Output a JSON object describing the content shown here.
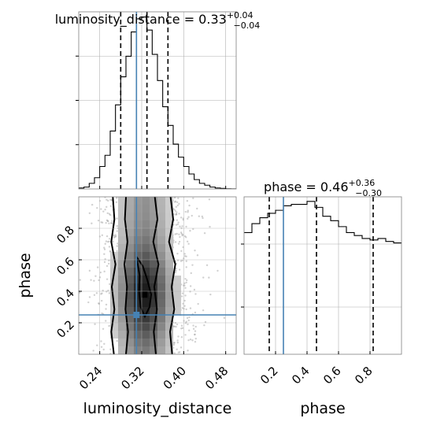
{
  "chart_data": [
    {
      "type": "histogram",
      "panel": "top-left",
      "parameter": "luminosity_distance",
      "title": "luminosity_distance = 0.33",
      "title_parts": {
        "label": "luminosity_distance = 0.33",
        "plus": "+0.04",
        "minus": "−0.04"
      },
      "xlim": [
        0.2,
        0.5
      ],
      "x_ticks": [
        0.24,
        0.32,
        0.4,
        0.48
      ],
      "grid": true,
      "bins": [
        0.2,
        0.21,
        0.22,
        0.23,
        0.24,
        0.25,
        0.26,
        0.27,
        0.28,
        0.29,
        0.3,
        0.31,
        0.32,
        0.33,
        0.34,
        0.35,
        0.36,
        0.37,
        0.38,
        0.39,
        0.4,
        0.41,
        0.42,
        0.43,
        0.44,
        0.45,
        0.46,
        0.47,
        0.48,
        0.49,
        0.5
      ],
      "counts": [
        0.5,
        1,
        3,
        6,
        12,
        18,
        31,
        45,
        60,
        71,
        84,
        91,
        92,
        85,
        72,
        58,
        44,
        34,
        24,
        17,
        12,
        8,
        5,
        3,
        2,
        1,
        0.5,
        0.3,
        0.1,
        0.05
      ],
      "quantile_lines": [
        0.28,
        0.33,
        0.37
      ],
      "truth_value": 0.31
    },
    {
      "type": "histogram",
      "panel": "bottom-right",
      "parameter": "phase",
      "title": "phase = 0.46",
      "title_parts": {
        "label": "phase = 0.46",
        "plus": "+0.36",
        "minus": "−0.30"
      },
      "xlim": [
        0.0,
        1.0
      ],
      "x_ticks": [
        0.2,
        0.4,
        0.6,
        0.8
      ],
      "xlabel": "phase",
      "grid": true,
      "bins": [
        0.0,
        0.05,
        0.1,
        0.15,
        0.2,
        0.25,
        0.3,
        0.35,
        0.4,
        0.45,
        0.5,
        0.55,
        0.6,
        0.65,
        0.7,
        0.75,
        0.8,
        0.85,
        0.9,
        0.95,
        1.0
      ],
      "counts": [
        82,
        88,
        92,
        95,
        97,
        100,
        101,
        101,
        103,
        99,
        93,
        90,
        86,
        82,
        80,
        78,
        77,
        78,
        76,
        75
      ],
      "quantile_lines": [
        0.16,
        0.46,
        0.82
      ],
      "truth_value": 0.25
    },
    {
      "type": "scatter-density",
      "panel": "bottom-left",
      "xlabel": "luminosity_distance",
      "ylabel": "phase",
      "xlim": [
        0.2,
        0.5
      ],
      "ylim": [
        0.0,
        1.0
      ],
      "x_ticks": [
        0.24,
        0.32,
        0.4,
        0.48
      ],
      "y_ticks": [
        0.2,
        0.4,
        0.6,
        0.8
      ],
      "grid": true,
      "truth_point": {
        "x": 0.31,
        "y": 0.25
      }
    }
  ],
  "colors": {
    "truth": "#4682b4",
    "hist_line": "#000000",
    "quantile": "#000000",
    "grid": "#b0b0b0",
    "spine": "#808080"
  }
}
